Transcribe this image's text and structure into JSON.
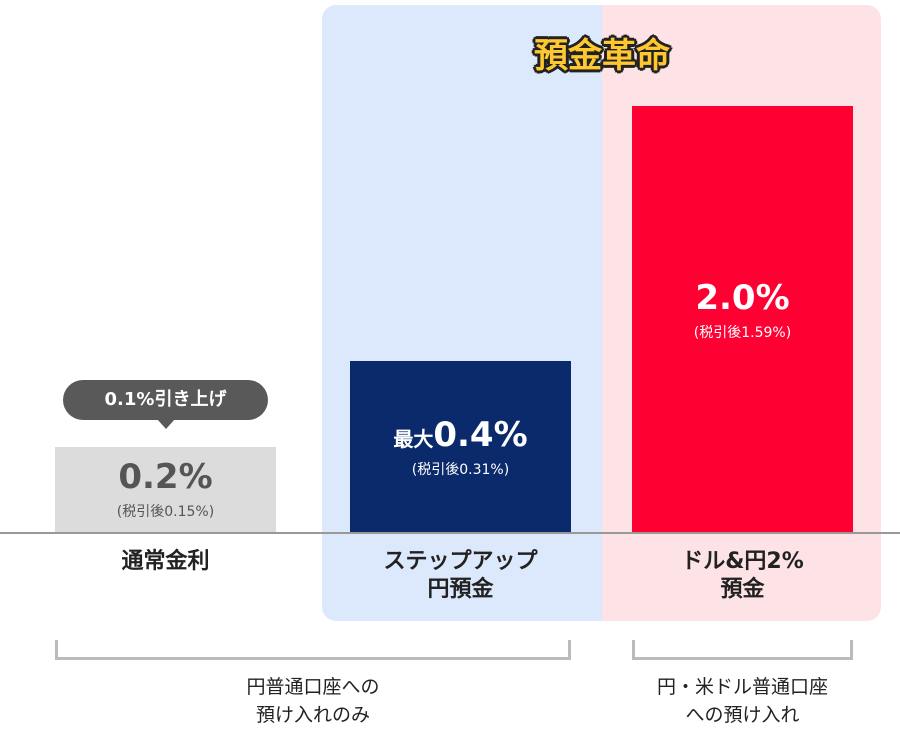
{
  "chart_data": {
    "type": "bar",
    "title": "預金革命",
    "categories": [
      "通常金利",
      "ステップアップ\n円預金",
      "ドル&円2%\n預金"
    ],
    "values": [
      0.2,
      0.4,
      2.0
    ],
    "value_labels": [
      "0.2%",
      "最大0.4%",
      "2.0%"
    ],
    "value_prefix": [
      "",
      "最大",
      ""
    ],
    "value_main": [
      "0.2%",
      "0.4%",
      "2.0%"
    ],
    "after_tax_labels": [
      "(税引後0.15%)",
      "(税引後0.31%)",
      "(税引後1.59%)"
    ],
    "after_tax_values": [
      0.15,
      0.31,
      1.59
    ],
    "unit": "%",
    "colors": [
      "#dcdcdc",
      "#0a2a6b",
      "#ff0033"
    ],
    "annotation": "0.1%引き上げ",
    "groups": [
      {
        "label": "円普通口座への\n預け入れのみ",
        "categories": [
          0,
          1
        ]
      },
      {
        "label": "円・米ドル普通口座\nへの預け入れ",
        "categories": [
          2
        ]
      }
    ],
    "panel_colors": {
      "step_up": "#dce8fb",
      "dollar_yen": "#fde3e6"
    },
    "title_color": "#ffc830",
    "grid": false
  }
}
